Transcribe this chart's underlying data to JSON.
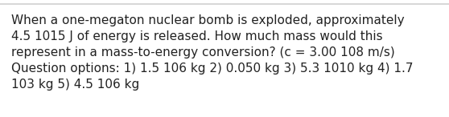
{
  "text": "When a one-megaton nuclear bomb is exploded, approximately\n4.5 1015 J of energy is released. How much mass would this\nrepresent in a mass-to-energy conversion? (c = 3.00 108 m/s)\nQuestion options: 1) 1.5 106 kg 2) 0.050 kg 3) 5.3 1010 kg 4) 1.7\n103 kg 5) 4.5 106 kg",
  "background_color": "#ffffff",
  "top_border_color": "#d0d0d0",
  "text_color": "#222222",
  "font_size": 11.0,
  "fig_width": 5.58,
  "fig_height": 1.46,
  "dpi": 100
}
